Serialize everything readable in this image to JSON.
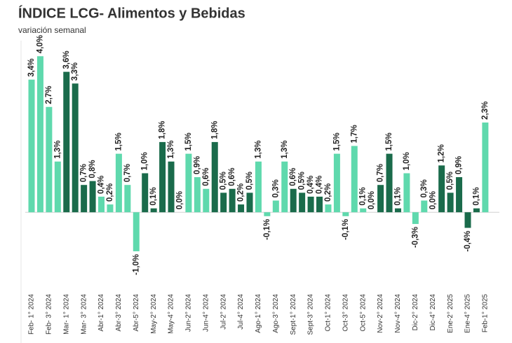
{
  "chart_data": {
    "type": "bar",
    "title": "ÍNDICE LCG- Alimentos y Bebidas",
    "subtitle": "variación semanal",
    "categories": [
      "Feb- 1° 2024",
      null,
      "Feb- 3° 2024",
      null,
      "Mar- 1° 2024",
      null,
      "Mar- 3° 2024",
      null,
      "Abr-1° 2024",
      null,
      "Abr-3° 2024",
      null,
      "Abr-5° 2024",
      null,
      "May-2° 2024",
      null,
      "May-4° 2024",
      null,
      "Jun-2° 2024",
      null,
      "Jun-4° 2024",
      null,
      "Jul-2° 2024",
      null,
      "Jul-4° 2024",
      null,
      "Ago-1° 2024",
      null,
      "Ago-3° 2024",
      null,
      "Sept-1° 2024",
      null,
      "Sept-3° 2024",
      null,
      "Oct-1° 2024",
      null,
      "Oct-3° 2024",
      null,
      "Oct-5° 2024",
      null,
      "Nov-2° 2024",
      null,
      "Nov-4° 2024",
      null,
      "Dic-2° 2024",
      null,
      "Dic-4° 2024",
      null,
      "Ene-2° 2025",
      null,
      "Ene-4° 2025",
      null,
      "Feb-1° 2025"
    ],
    "values": [
      3.4,
      4.0,
      2.7,
      1.3,
      3.6,
      3.3,
      0.7,
      0.8,
      0.4,
      0.2,
      1.5,
      0.7,
      -1.0,
      1.0,
      0.1,
      1.8,
      1.3,
      0.0,
      1.5,
      0.9,
      0.6,
      1.8,
      0.5,
      0.6,
      0.2,
      0.5,
      1.3,
      -0.1,
      0.3,
      1.3,
      0.6,
      0.5,
      0.4,
      0.4,
      0.2,
      1.5,
      -0.1,
      1.7,
      0.1,
      0.0,
      0.7,
      1.5,
      0.1,
      1.0,
      -0.3,
      0.3,
      0.0,
      1.2,
      0.5,
      0.9,
      -0.4,
      0.1,
      2.3
    ],
    "value_labels": [
      "3,4%",
      "4,0%",
      "2,7%",
      "1,3%",
      "3,6%",
      "3,3%",
      "0,7%",
      "0,8%",
      "0,4%",
      "0,2%",
      "1,5%",
      "0,7%",
      "-1,0%",
      "1,0%",
      "0,1%",
      "1,8%",
      "1,3%",
      "0,0%",
      "1,5%",
      "0,9%",
      "0,6%",
      "1,8%",
      "0,5%",
      "0,6%",
      "0,2%",
      "0,5%",
      "1,3%",
      "-0,1%",
      "0,3%",
      "1,3%",
      "0,6%",
      "0,5%",
      "0,4%",
      "0,4%",
      "0,2%",
      "1,5%",
      "-0,1%",
      "1,7%",
      "0,1%",
      "0,0%",
      "0,7%",
      "1,5%",
      "0,1%",
      "1,0%",
      "-0,3%",
      "0,3%",
      "0,0%",
      "1,2%",
      "0,5%",
      "0,9%",
      "-0,4%",
      "0,1%",
      "2,3%"
    ],
    "colors": [
      "#5fd9ad",
      "#5fd9ad",
      "#5fd9ad",
      "#5fd9ad",
      "#1a6b4b",
      "#1a6b4b",
      "#1a6b4b",
      "#1a6b4b",
      "#5fd9ad",
      "#5fd9ad",
      "#5fd9ad",
      "#5fd9ad",
      "#5fd9ad",
      "#1a6b4b",
      "#1a6b4b",
      "#1a6b4b",
      "#1a6b4b",
      "#5fd9ad",
      "#5fd9ad",
      "#5fd9ad",
      "#5fd9ad",
      "#1a6b4b",
      "#1a6b4b",
      "#1a6b4b",
      "#1a6b4b",
      "#1a6b4b",
      "#5fd9ad",
      "#5fd9ad",
      "#5fd9ad",
      "#5fd9ad",
      "#1a6b4b",
      "#1a6b4b",
      "#1a6b4b",
      "#1a6b4b",
      "#5fd9ad",
      "#5fd9ad",
      "#5fd9ad",
      "#5fd9ad",
      "#5fd9ad",
      "#1a6b4b",
      "#1a6b4b",
      "#1a6b4b",
      "#1a6b4b",
      "#5fd9ad",
      "#5fd9ad",
      "#5fd9ad",
      "#5fd9ad",
      "#1a6b4b",
      "#1a6b4b",
      "#1a6b4b",
      "#1a6b4b",
      "#1a6b4b",
      "#5fd9ad"
    ],
    "ylim": [
      -1.6,
      4.4
    ]
  }
}
